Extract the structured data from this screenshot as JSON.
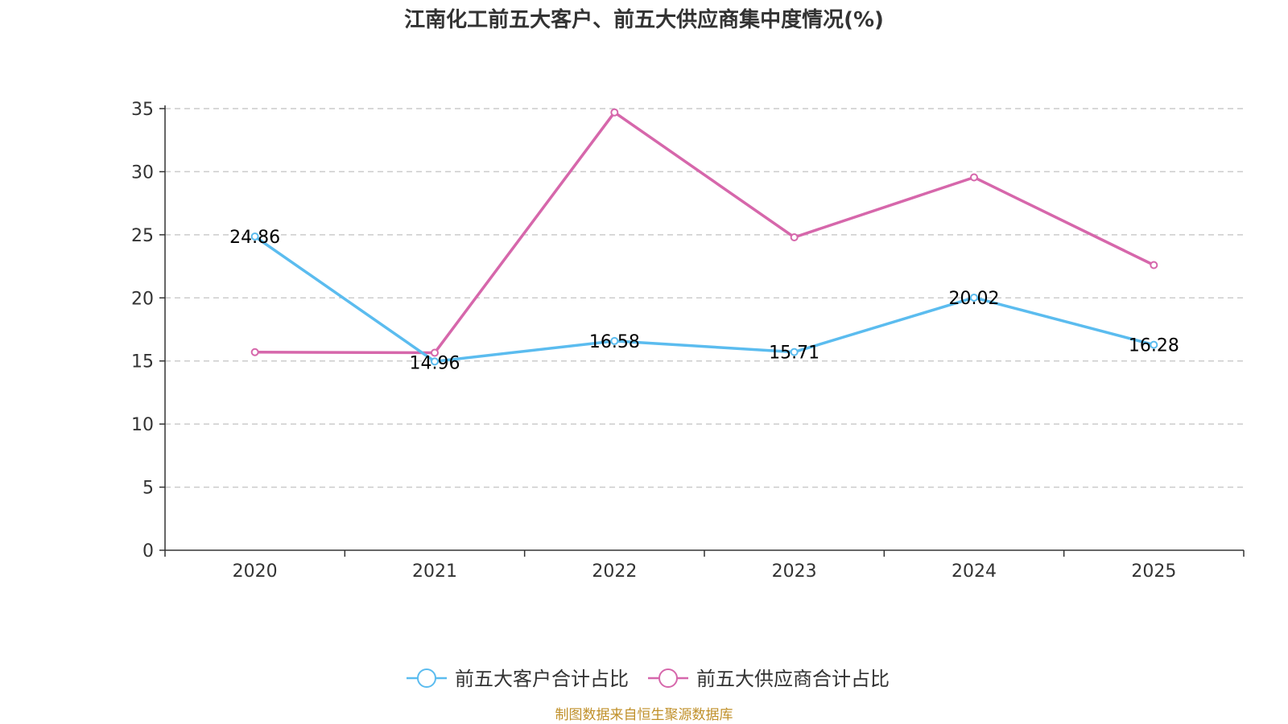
{
  "chart_data": {
    "type": "line",
    "title": "江南化工前五大客户、前五大供应商集中度情况(%)",
    "categories": [
      "2020",
      "2021",
      "2022",
      "2023",
      "2024",
      "2025"
    ],
    "ylim": [
      0,
      35
    ],
    "yticks": [
      "0",
      "5",
      "10",
      "15",
      "20",
      "25",
      "30",
      "35"
    ],
    "grid": true,
    "legend_position": "bottom-center",
    "series": [
      {
        "name": "前五大客户合计占比",
        "color": "#5bbcef",
        "values": [
          24.86,
          14.96,
          16.58,
          15.71,
          20.02,
          16.28
        ],
        "labels": [
          "24.86",
          "14.96",
          "16.58",
          "15.71",
          "20.02",
          "16.28"
        ]
      },
      {
        "name": "前五大供应商合计占比",
        "color": "#d667ab",
        "values": [
          15.7,
          15.65,
          34.7,
          24.8,
          29.55,
          22.6
        ]
      }
    ],
    "source": "制图数据来自恒生聚源数据库"
  }
}
